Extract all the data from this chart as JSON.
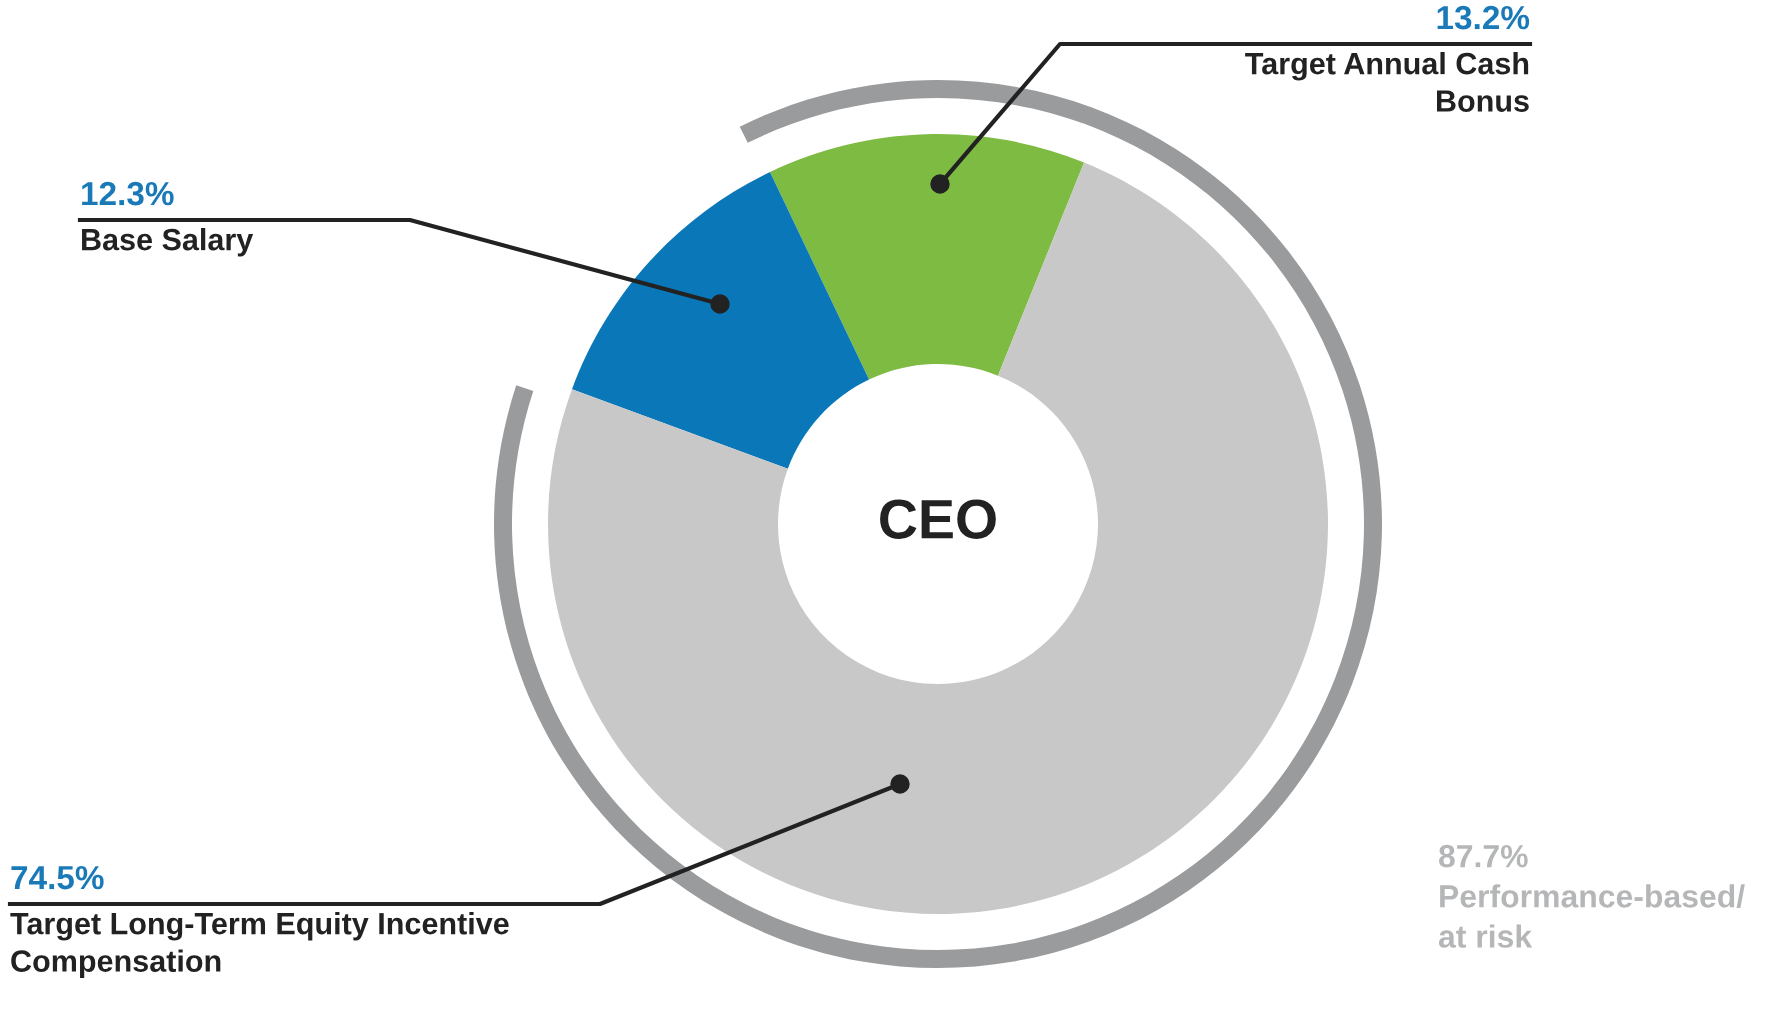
{
  "chart_data": {
    "type": "donut",
    "categories": [
      "Target Annual Cash Bonus",
      "Base Salary",
      "Target Long-Term Equity Incentive Compensation"
    ],
    "values": [
      13.2,
      12.3,
      74.5
    ],
    "colors": [
      "#7dbb42",
      "#0a78b8",
      "#c8c8c8"
    ],
    "value_labels": [
      "13.2%",
      "12.3%",
      "74.5%"
    ],
    "title": "CEO",
    "annotations": [
      "87.7%\nPerformance-based/\nat risk"
    ]
  }
}
